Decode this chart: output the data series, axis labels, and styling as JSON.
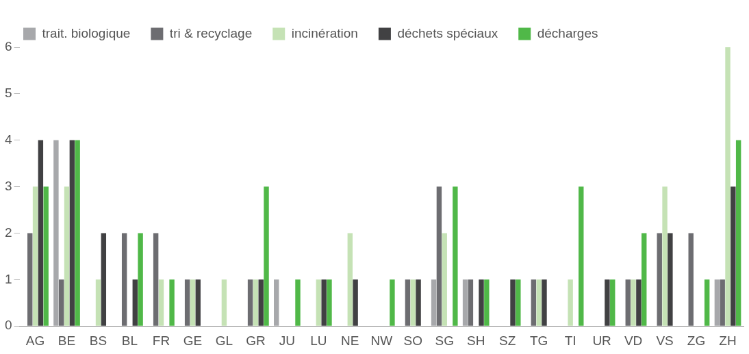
{
  "chart_data": {
    "type": "bar",
    "categories": [
      "AG",
      "BE",
      "BS",
      "BL",
      "FR",
      "GE",
      "GL",
      "GR",
      "JU",
      "LU",
      "NE",
      "NW",
      "SO",
      "SG",
      "SH",
      "SZ",
      "TG",
      "TI",
      "UR",
      "VD",
      "VS",
      "ZG",
      "ZH"
    ],
    "series": [
      {
        "name": "trait. biologique",
        "color": "#a7a8ab",
        "values": [
          0,
          4,
          0,
          0,
          0,
          0,
          0,
          0,
          1,
          0,
          0,
          0,
          0,
          1,
          1,
          0,
          0,
          0,
          0,
          0,
          0,
          0,
          1
        ]
      },
      {
        "name": "tri & recyclage",
        "color": "#6d6d71",
        "values": [
          2,
          1,
          0,
          2,
          2,
          1,
          0,
          1,
          0,
          0,
          0,
          0,
          1,
          3,
          1,
          0,
          1,
          0,
          0,
          1,
          2,
          2,
          1
        ]
      },
      {
        "name": "incinération",
        "color": "#c5e2b5",
        "values": [
          3,
          3,
          1,
          0,
          1,
          1,
          1,
          1,
          0,
          1,
          2,
          0,
          1,
          2,
          0,
          0,
          1,
          1,
          0,
          1,
          3,
          0,
          6
        ]
      },
      {
        "name": "déchets spéciaux",
        "color": "#414143",
        "values": [
          4,
          4,
          2,
          1,
          0,
          1,
          0,
          1,
          0,
          1,
          1,
          0,
          1,
          0,
          1,
          1,
          1,
          0,
          1,
          1,
          2,
          0,
          3
        ]
      },
      {
        "name": "décharges",
        "color": "#50b848",
        "values": [
          3,
          4,
          0,
          2,
          1,
          0,
          0,
          3,
          1,
          1,
          0,
          1,
          0,
          3,
          1,
          1,
          0,
          3,
          1,
          2,
          0,
          1,
          4
        ]
      }
    ],
    "ylim": [
      0,
      6
    ],
    "yticks": [
      0,
      1,
      2,
      3,
      4,
      5,
      6
    ],
    "grid": false,
    "legend": "top left"
  }
}
